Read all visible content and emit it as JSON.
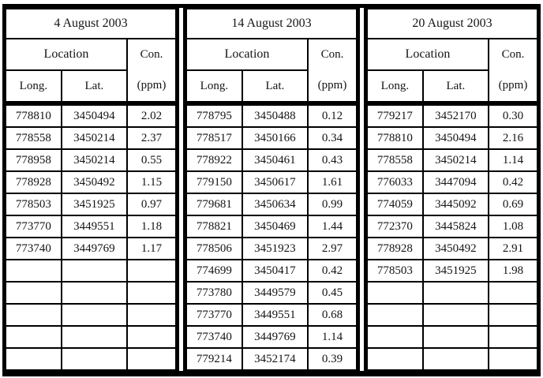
{
  "figure": {
    "shared_headers": {
      "location_label": "Location",
      "con_label": "Con.",
      "ppm_label": "(ppm)",
      "long_label": "Long.",
      "lat_label": "Lat."
    },
    "sections": [
      {
        "date": "4 August 2003",
        "rows": [
          [
            "778810",
            "3450494",
            "2.02"
          ],
          [
            "778558",
            "3450214",
            "2.37"
          ],
          [
            "778958",
            "3450214",
            "0.55"
          ],
          [
            "778928",
            "3450492",
            "1.15"
          ],
          [
            "778503",
            "3451925",
            "0.97"
          ],
          [
            "773770",
            "3449551",
            "1.18"
          ],
          [
            "773740",
            "3449769",
            "1.17"
          ],
          [
            "",
            "",
            ""
          ],
          [
            "",
            "",
            ""
          ],
          [
            "",
            "",
            ""
          ],
          [
            "",
            "",
            ""
          ],
          [
            "",
            "",
            ""
          ]
        ]
      },
      {
        "date": "14 August 2003",
        "rows": [
          [
            "778795",
            "3450488",
            "0.12"
          ],
          [
            "778517",
            "3450166",
            "0.34"
          ],
          [
            "778922",
            "3450461",
            "0.43"
          ],
          [
            "779150",
            "3450617",
            "1.61"
          ],
          [
            "779681",
            "3450634",
            "0.99"
          ],
          [
            "778821",
            "3450469",
            "1.44"
          ],
          [
            "778506",
            "3451923",
            "2.97"
          ],
          [
            "774699",
            "3450417",
            "0.42"
          ],
          [
            "773780",
            "3449579",
            "0.45"
          ],
          [
            "773770",
            "3449551",
            "0.68"
          ],
          [
            "773740",
            "3449769",
            "1.14"
          ],
          [
            "779214",
            "3452174",
            "0.39"
          ]
        ]
      },
      {
        "date": "20 August 2003",
        "rows": [
          [
            "779217",
            "3452170",
            "0.30"
          ],
          [
            "778810",
            "3450494",
            "2.16"
          ],
          [
            "778558",
            "3450214",
            "1.14"
          ],
          [
            "776033",
            "3447094",
            "0.42"
          ],
          [
            "774059",
            "3445092",
            "0.69"
          ],
          [
            "772370",
            "3445824",
            "1.08"
          ],
          [
            "778928",
            "3450492",
            "2.91"
          ],
          [
            "778503",
            "3451925",
            "1.98"
          ],
          [
            "",
            "",
            ""
          ],
          [
            "",
            "",
            ""
          ],
          [
            "",
            "",
            ""
          ],
          [
            "",
            "",
            ""
          ]
        ]
      }
    ]
  }
}
